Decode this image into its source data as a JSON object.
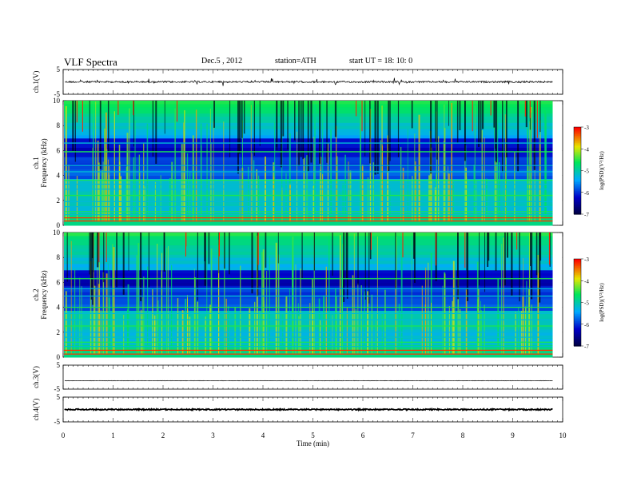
{
  "header": {
    "title": "VLF  Spectra",
    "date": "Dec.5  , 2012",
    "station": "station=ATH",
    "start": "start  UT  =    18: 10: 0"
  },
  "chart_data": [
    {
      "type": "line",
      "ylabel": "ch.1(V)",
      "ylim": [
        -5,
        5
      ],
      "yticks": [
        "5",
        "-5"
      ],
      "xlim": [
        0,
        10
      ],
      "description_level": 0
    },
    {
      "type": "heatmap",
      "ylabel": "ch.1\nFrequency  (kHz)",
      "ylabel_lines": [
        "ch.1",
        "Frequency  (kHz)"
      ],
      "ylim": [
        0,
        10
      ],
      "yticks": [
        "0",
        "2",
        "4",
        "6",
        "8",
        "10"
      ],
      "xlim": [
        0,
        10
      ],
      "data_end_min": 9.8,
      "colorbar": {
        "label": "log(PSD)(V²/Hz)",
        "ticks": [
          "-3",
          "-4",
          "-5",
          "-6",
          "-7"
        ],
        "range": [
          -7,
          -3
        ]
      },
      "horizontal_lines_khz": [
        0.35,
        0.6,
        0.85,
        1.1,
        1.5,
        1.9,
        2.4,
        2.9,
        3.3,
        3.6,
        4.3,
        4.8,
        5.9,
        6.6
      ],
      "colors": {
        "low": "#000080",
        "mid": "#00c0ff",
        "high": "#00ff40",
        "peak": "#ff0000"
      }
    },
    {
      "type": "heatmap",
      "ylabel": "ch.2\nFrequency  (kHz)",
      "ylabel_lines": [
        "ch.2",
        "Frequency  (kHz)"
      ],
      "ylim": [
        0,
        10
      ],
      "yticks": [
        "0",
        "2",
        "4",
        "6",
        "8",
        "10"
      ],
      "xlim": [
        0,
        10
      ],
      "data_end_min": 9.8,
      "colorbar": {
        "label": "log(PSD)(V²/Hz)",
        "ticks": [
          "-3",
          "-4",
          "-5",
          "-6",
          "-7"
        ],
        "range": [
          -7,
          -3
        ]
      },
      "horizontal_lines_khz": [
        0.25,
        0.55,
        0.85,
        1.2,
        1.6,
        2.0,
        2.5,
        3.0,
        3.5,
        4.0,
        4.9,
        5.5,
        6.3
      ],
      "colors": {
        "low": "#000080",
        "mid": "#00c0ff",
        "high": "#00ff40",
        "peak": "#ff0000"
      }
    },
    {
      "type": "line",
      "ylabel": "ch.3(V)",
      "ylim": [
        -5,
        5
      ],
      "yticks": [
        "5",
        "-5"
      ],
      "xlim": [
        0,
        10
      ],
      "description_level": -1.5
    },
    {
      "type": "line",
      "ylabel": "ch.4(V)",
      "ylim": [
        -5,
        5
      ],
      "yticks": [
        "5",
        "-5"
      ],
      "xlim": [
        0,
        10
      ],
      "description_level": 0
    }
  ],
  "xaxis": {
    "label": "Time  (min)",
    "ticks": [
      "0",
      "1",
      "2",
      "3",
      "4",
      "5",
      "6",
      "7",
      "8",
      "9",
      "10"
    ]
  }
}
